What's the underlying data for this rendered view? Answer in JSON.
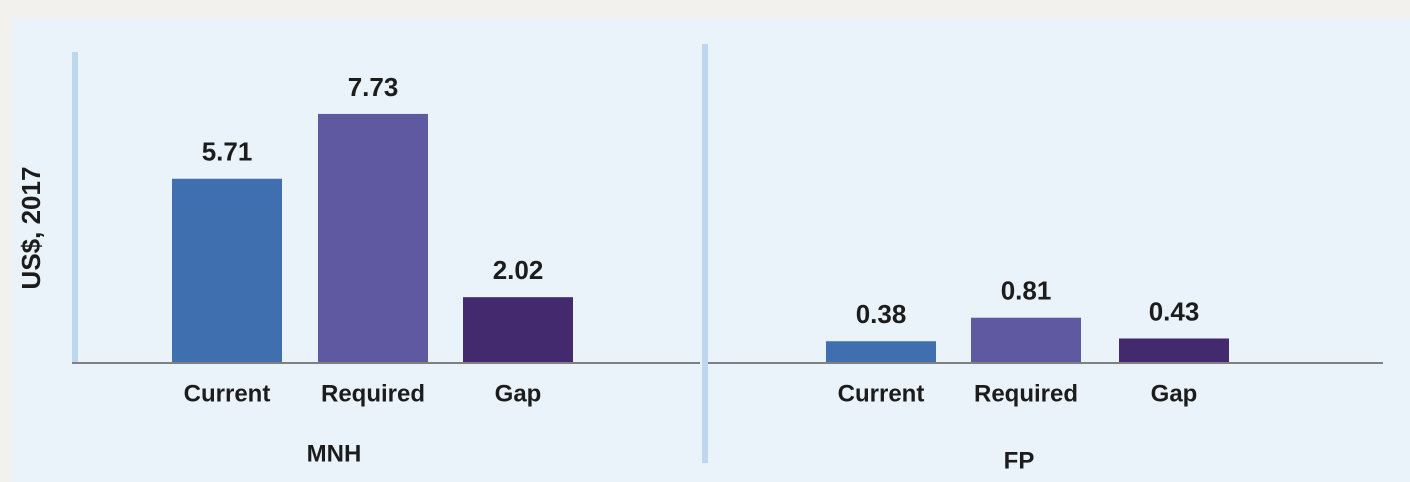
{
  "chart_data": [
    {
      "type": "bar",
      "ylabel": "US$, 2017",
      "xlabel": "MNH",
      "categories": [
        "Current",
        "Required",
        "Gap"
      ],
      "values": [
        5.71,
        7.73,
        2.02
      ],
      "colors": [
        "#3f6fae",
        "#5e59a0",
        "#43296e"
      ],
      "ylim": [
        0,
        9.66
      ]
    },
    {
      "type": "bar",
      "xlabel": "FP",
      "categories": [
        "Current",
        "Required",
        "Gap"
      ],
      "values": [
        0.38,
        0.81,
        0.43
      ],
      "colors": [
        "#3f6fae",
        "#5e59a0",
        "#43296e"
      ],
      "ylim": [
        0,
        5.8
      ]
    }
  ]
}
